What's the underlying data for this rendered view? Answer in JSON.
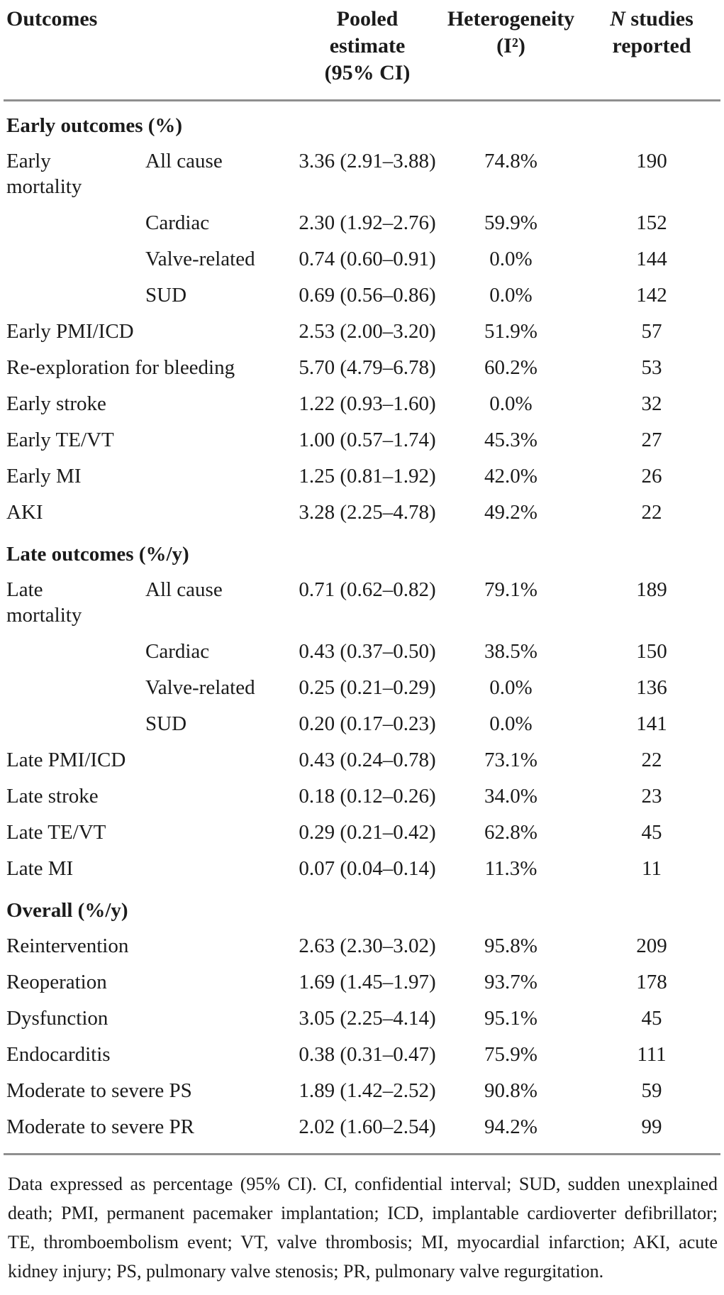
{
  "header": {
    "outcomes": "Outcomes",
    "pooled_lines": [
      "Pooled",
      "estimate",
      "(95% CI)"
    ],
    "heterogeneity_line1": "Heterogeneity",
    "heterogeneity_line2": "(I²)",
    "n_studies_italic": "N",
    "n_studies_rest": "studies",
    "n_studies_line2": "reported"
  },
  "sections": [
    {
      "label": "Early outcomes (%)",
      "rows": [
        {
          "group": "Early mortality",
          "sub": "All cause",
          "estimate": "3.36 (2.91–3.88)",
          "heterogeneity": "74.8%",
          "n": "190"
        },
        {
          "group": "",
          "sub": "Cardiac",
          "estimate": "2.30 (1.92–2.76)",
          "heterogeneity": "59.9%",
          "n": "152"
        },
        {
          "group": "",
          "sub": "Valve-related",
          "estimate": "0.74 (0.60–0.91)",
          "heterogeneity": "0.0%",
          "n": "144"
        },
        {
          "group": "",
          "sub": "SUD",
          "estimate": "0.69 (0.56–0.86)",
          "heterogeneity": "0.0%",
          "n": "142"
        },
        {
          "label": "Early PMI/ICD",
          "estimate": "2.53 (2.00–3.20)",
          "heterogeneity": "51.9%",
          "n": "57"
        },
        {
          "label": "Re-exploration for bleeding",
          "estimate": "5.70 (4.79–6.78)",
          "heterogeneity": "60.2%",
          "n": "53"
        },
        {
          "label": "Early stroke",
          "estimate": "1.22 (0.93–1.60)",
          "heterogeneity": "0.0%",
          "n": "32"
        },
        {
          "label": "Early TE/VT",
          "estimate": "1.00 (0.57–1.74)",
          "heterogeneity": "45.3%",
          "n": "27"
        },
        {
          "label": "Early MI",
          "estimate": "1.25 (0.81–1.92)",
          "heterogeneity": "42.0%",
          "n": "26"
        },
        {
          "label": "AKI",
          "estimate": "3.28 (2.25–4.78)",
          "heterogeneity": "49.2%",
          "n": "22"
        }
      ]
    },
    {
      "label": "Late outcomes (%/y)",
      "rows": [
        {
          "group": "Late mortality",
          "sub": "All cause",
          "estimate": "0.71 (0.62–0.82)",
          "heterogeneity": "79.1%",
          "n": "189"
        },
        {
          "group": "",
          "sub": "Cardiac",
          "estimate": "0.43 (0.37–0.50)",
          "heterogeneity": "38.5%",
          "n": "150"
        },
        {
          "group": "",
          "sub": "Valve-related",
          "estimate": "0.25 (0.21–0.29)",
          "heterogeneity": "0.0%",
          "n": "136"
        },
        {
          "group": "",
          "sub": "SUD",
          "estimate": "0.20 (0.17–0.23)",
          "heterogeneity": "0.0%",
          "n": "141"
        },
        {
          "label": "Late PMI/ICD",
          "estimate": "0.43 (0.24–0.78)",
          "heterogeneity": "73.1%",
          "n": "22"
        },
        {
          "label": "Late stroke",
          "estimate": "0.18 (0.12–0.26)",
          "heterogeneity": "34.0%",
          "n": "23"
        },
        {
          "label": "Late TE/VT",
          "estimate": "0.29 (0.21–0.42)",
          "heterogeneity": "62.8%",
          "n": "45"
        },
        {
          "label": "Late MI",
          "estimate": "0.07 (0.04–0.14)",
          "heterogeneity": "11.3%",
          "n": "11"
        }
      ]
    },
    {
      "label": "Overall (%/y)",
      "rows": [
        {
          "label": "Reintervention",
          "estimate": "2.63 (2.30–3.02)",
          "heterogeneity": "95.8%",
          "n": "209"
        },
        {
          "label": "Reoperation",
          "estimate": "1.69 (1.45–1.97)",
          "heterogeneity": "93.7%",
          "n": "178"
        },
        {
          "label": "Dysfunction",
          "estimate": "3.05 (2.25–4.14)",
          "heterogeneity": "95.1%",
          "n": "45"
        },
        {
          "label": "Endocarditis",
          "estimate": "0.38 (0.31–0.47)",
          "heterogeneity": "75.9%",
          "n": "111"
        },
        {
          "label": "Moderate to severe PS",
          "estimate": "1.89 (1.42–2.52)",
          "heterogeneity": "90.8%",
          "n": "59"
        },
        {
          "label": "Moderate to severe PR",
          "estimate": "2.02 (1.60–2.54)",
          "heterogeneity": "94.2%",
          "n": "99"
        }
      ]
    }
  ],
  "footnote": "Data expressed as percentage (95% CI). CI, confidential interval; SUD, sudden unexplained death; PMI, permanent pacemaker implantation; ICD, implantable cardioverter defibrillator; TE, thromboembolism event; VT, valve thrombosis; MI, myocardial infarction; AKI, acute kidney injury; PS, pulmonary valve stenosis; PR, pulmonary valve regurgitation.",
  "colors": {
    "text": "#1b1b1b",
    "rule": "#8f8f8f",
    "background": "#ffffff"
  }
}
